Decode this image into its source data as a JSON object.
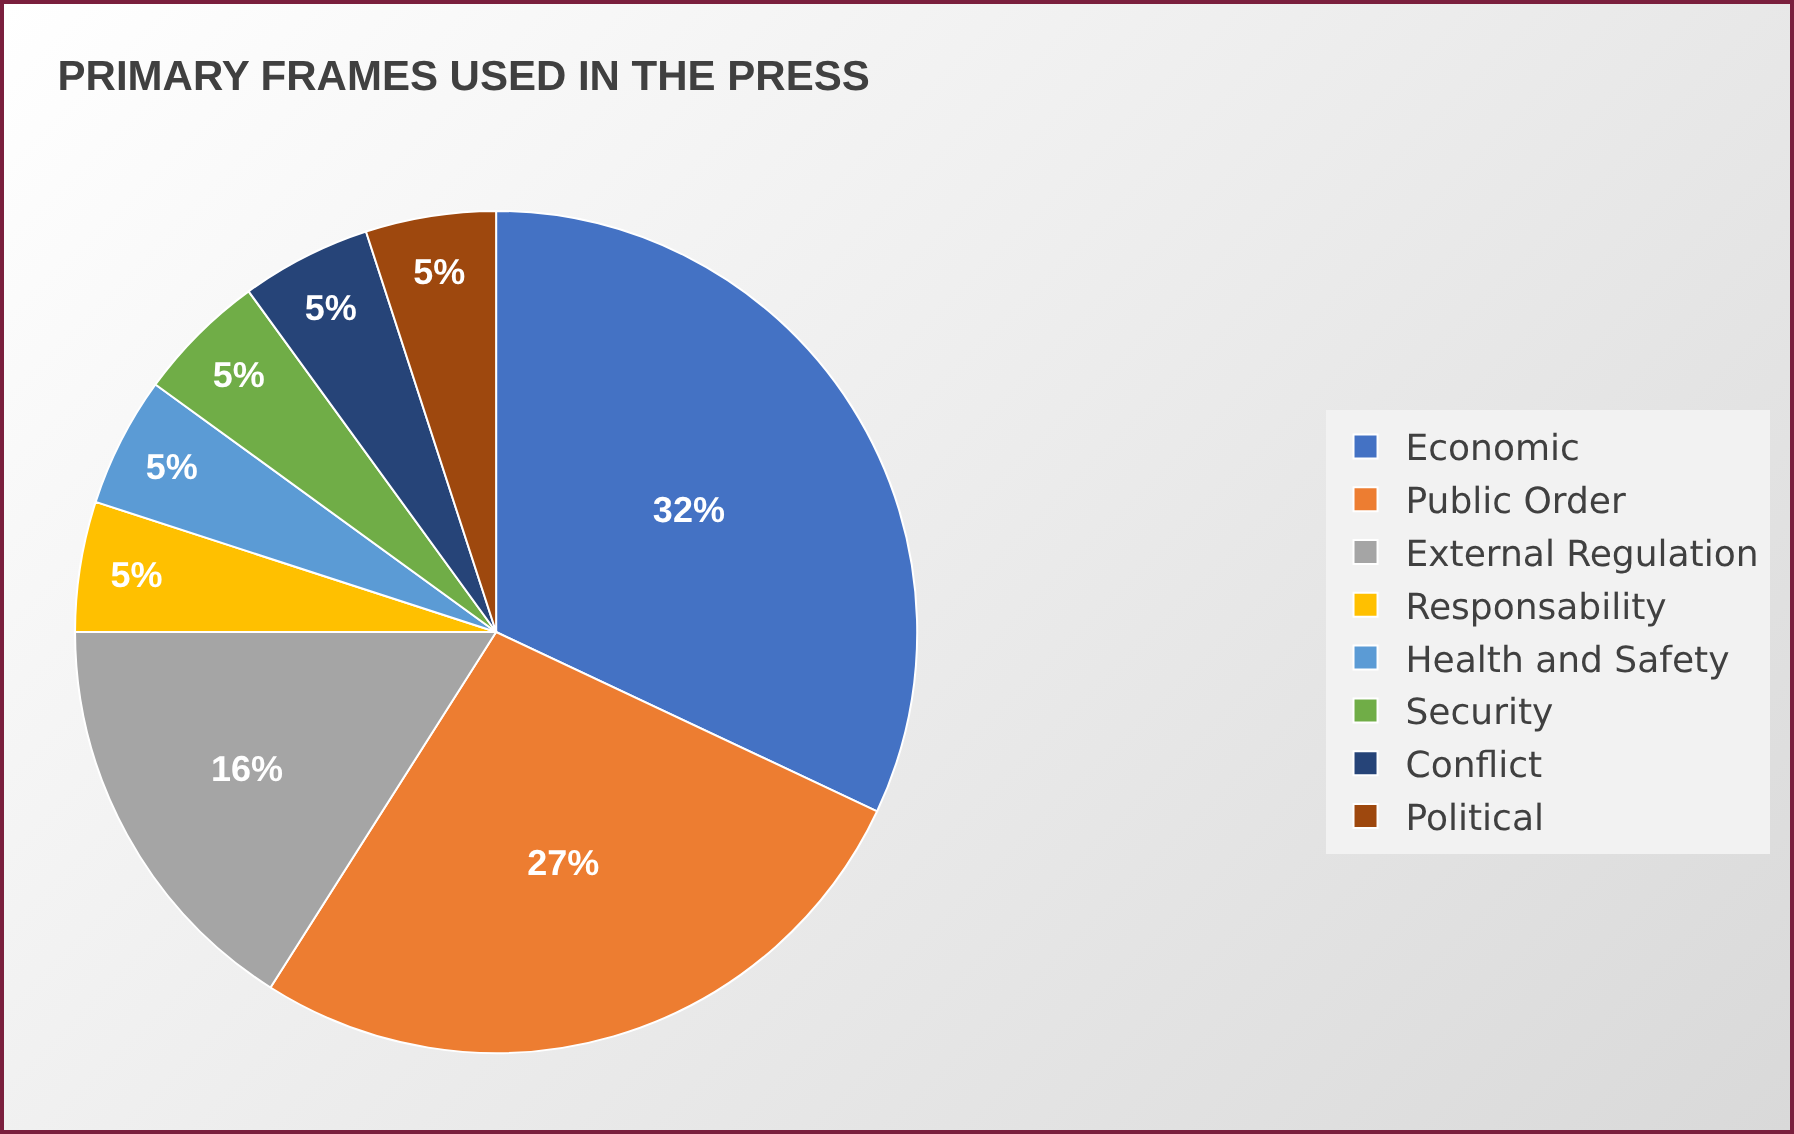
{
  "chart_data": {
    "type": "pie",
    "title": "PRIMARY FRAMES USED IN THE PRESS",
    "categories": [
      "Economic",
      "Public Order",
      "External Regulation",
      "Responsability",
      "Health and Safety",
      "Security",
      "Conflict",
      "Political"
    ],
    "values": [
      32,
      27,
      16,
      5,
      5,
      5,
      5,
      5
    ],
    "value_labels": [
      "32%",
      "27%",
      "16%",
      "5%",
      "5%",
      "5%",
      "5%",
      "5%"
    ],
    "colors": [
      "#4472c4",
      "#ed7d31",
      "#a5a5a5",
      "#ffc000",
      "#5b9bd5",
      "#70ad47",
      "#264478",
      "#9e480e"
    ],
    "legend": "right"
  }
}
